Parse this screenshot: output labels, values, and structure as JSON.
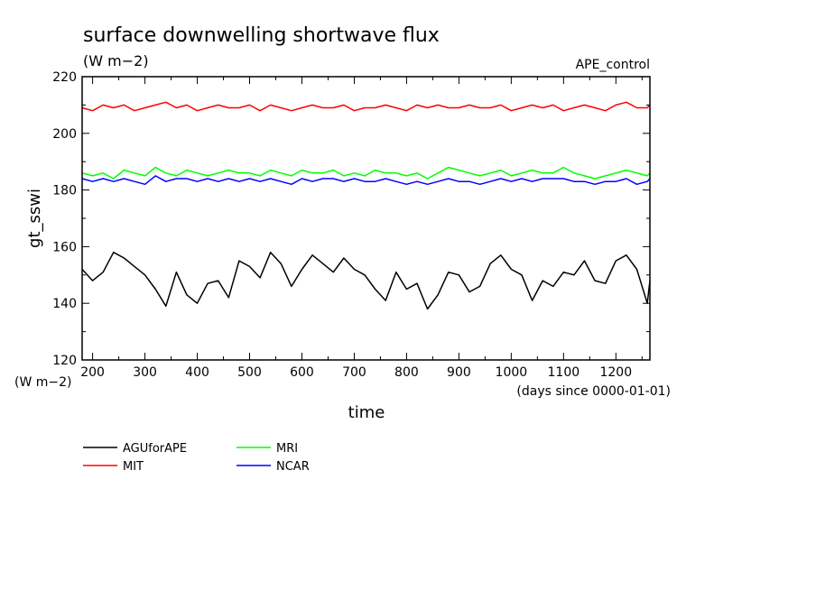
{
  "chart_data": {
    "type": "line",
    "title": "surface downwelling shortwave flux",
    "subtitle": "(W m−2)",
    "annotation": "APE_control",
    "xlabel": "time",
    "x_units": "(days since 0000-01-01)",
    "ylabel": "gt_sswi",
    "y_units": "(W m−2)",
    "xlim": [
      180,
      1265
    ],
    "ylim": [
      120,
      220
    ],
    "x_ticks": [
      200,
      300,
      400,
      500,
      600,
      700,
      800,
      900,
      1000,
      1100,
      1200
    ],
    "y_ticks": [
      120,
      140,
      160,
      180,
      200,
      220
    ],
    "grid": false,
    "legend_position": "bottom-left",
    "x": [
      180,
      200,
      220,
      240,
      260,
      280,
      300,
      320,
      340,
      360,
      380,
      400,
      420,
      440,
      460,
      480,
      500,
      520,
      540,
      560,
      580,
      600,
      620,
      640,
      660,
      680,
      700,
      720,
      740,
      760,
      780,
      800,
      820,
      840,
      860,
      880,
      900,
      920,
      940,
      960,
      980,
      1000,
      1020,
      1040,
      1060,
      1080,
      1100,
      1120,
      1140,
      1160,
      1180,
      1200,
      1220,
      1240,
      1260,
      1265
    ],
    "series": [
      {
        "name": "AGUforAPE",
        "color": "#000000",
        "values": [
          152,
          148,
          151,
          158,
          156,
          153,
          150,
          145,
          139,
          151,
          143,
          140,
          147,
          148,
          142,
          155,
          153,
          149,
          158,
          154,
          146,
          152,
          157,
          154,
          151,
          156,
          152,
          150,
          145,
          141,
          151,
          145,
          147,
          138,
          143,
          151,
          150,
          144,
          146,
          154,
          157,
          152,
          150,
          141,
          148,
          146,
          151,
          150,
          155,
          148,
          147,
          155,
          157,
          152,
          140,
          148
        ]
      },
      {
        "name": "MIT",
        "color": "#ff0000",
        "values": [
          209,
          208,
          210,
          209,
          210,
          208,
          209,
          210,
          211,
          209,
          210,
          208,
          209,
          210,
          209,
          209,
          210,
          208,
          210,
          209,
          208,
          209,
          210,
          209,
          209,
          210,
          208,
          209,
          209,
          210,
          209,
          208,
          210,
          209,
          210,
          209,
          209,
          210,
          209,
          209,
          210,
          208,
          209,
          210,
          209,
          210,
          208,
          209,
          210,
          209,
          208,
          210,
          211,
          209,
          209,
          210
        ]
      },
      {
        "name": "MRI",
        "color": "#00ff00",
        "values": [
          186,
          185,
          186,
          184,
          187,
          186,
          185,
          188,
          186,
          185,
          187,
          186,
          185,
          186,
          187,
          186,
          186,
          185,
          187,
          186,
          185,
          187,
          186,
          186,
          187,
          185,
          186,
          185,
          187,
          186,
          186,
          185,
          186,
          184,
          186,
          188,
          187,
          186,
          185,
          186,
          187,
          185,
          186,
          187,
          186,
          186,
          188,
          186,
          185,
          184,
          185,
          186,
          187,
          186,
          185,
          186
        ]
      },
      {
        "name": "NCAR",
        "color": "#0000ff",
        "values": [
          184,
          183,
          184,
          183,
          184,
          183,
          182,
          185,
          183,
          184,
          184,
          183,
          184,
          183,
          184,
          183,
          184,
          183,
          184,
          183,
          182,
          184,
          183,
          184,
          184,
          183,
          184,
          183,
          183,
          184,
          183,
          182,
          183,
          182,
          183,
          184,
          183,
          183,
          182,
          183,
          184,
          183,
          184,
          183,
          184,
          184,
          184,
          183,
          183,
          182,
          183,
          183,
          184,
          182,
          183,
          184
        ]
      }
    ]
  }
}
